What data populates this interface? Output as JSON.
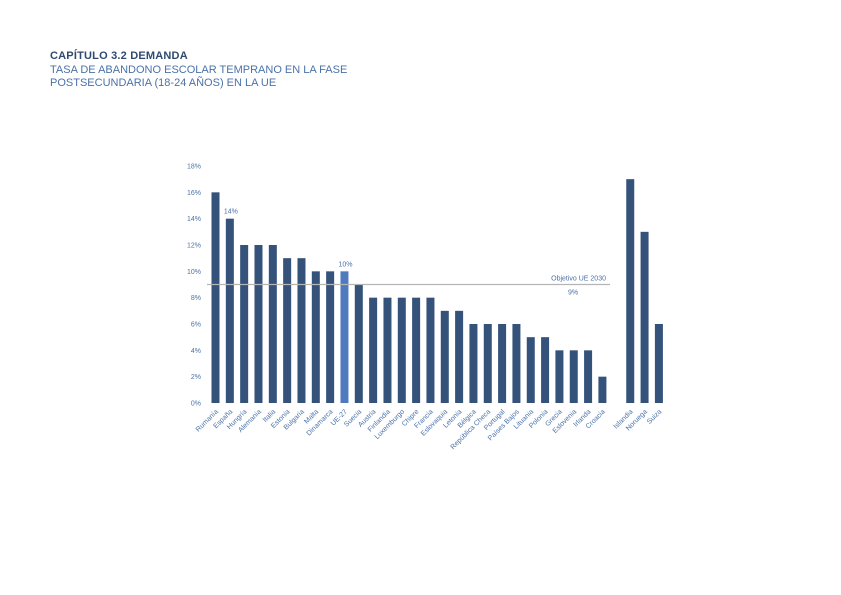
{
  "header": {
    "chapter": "CAPÍTULO 3.2 DEMANDA",
    "subtitle": "TASA DE ABANDONO ESCOLAR TEMPRANO EN LA FASE POSTSECUNDARIA (18-24 AÑOS) EN LA UE"
  },
  "colors": {
    "bar": "#34527a",
    "highlight": "#4f7bbe",
    "reference_line": "#b5b5b5",
    "text": "#4a72a8"
  },
  "chart_data": {
    "type": "bar",
    "categories": [
      "Rumanía",
      "España",
      "Hungría",
      "Alemania",
      "Italia",
      "Estonia",
      "Bulgaria",
      "Malta",
      "Dinamarca",
      "UE-27",
      "Suecia",
      "Austria",
      "Finlandia",
      "Luxemburgo",
      "Chipre",
      "Francia",
      "Eslovaquia",
      "Letonia",
      "Bélgica",
      "República Checa",
      "Portugal",
      "Países Bajos",
      "Lituania",
      "Polonia",
      "Grecia",
      "Eslovenia",
      "Irlanda",
      "Croacia",
      "Islandia",
      "Noruega",
      "Suiza"
    ],
    "values": [
      16,
      14,
      12,
      12,
      12,
      11,
      11,
      10,
      10,
      10,
      9,
      8,
      8,
      8,
      8,
      8,
      7,
      7,
      6,
      6,
      6,
      6,
      5,
      5,
      4,
      4,
      4,
      2,
      17,
      13,
      6
    ],
    "highlight_category": "UE-27",
    "group_gap_before": "Islandia",
    "data_labels": [
      {
        "category": "España",
        "text": "14%"
      },
      {
        "category": "UE-27",
        "text": "10%"
      }
    ],
    "reference_line": {
      "value": 9,
      "label": "Objetivo UE 2030",
      "value_label": "9%"
    },
    "y_ticks": [
      "0%",
      "2%",
      "4%",
      "6%",
      "8%",
      "10%",
      "12%",
      "14%",
      "16%",
      "18%"
    ],
    "ylim": [
      0,
      18
    ],
    "grid": false,
    "xlabel": "",
    "ylabel": ""
  }
}
